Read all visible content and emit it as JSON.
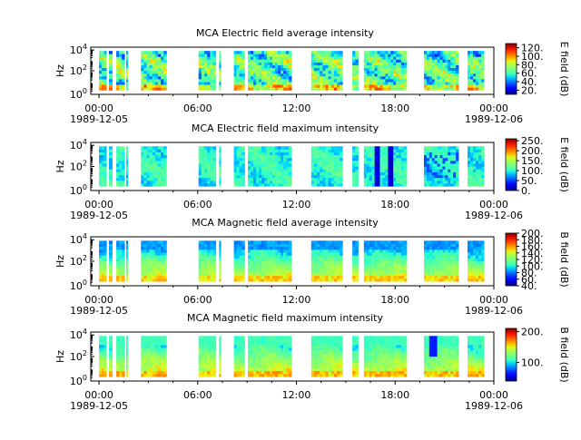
{
  "chart_data": [
    {
      "type": "heatmap",
      "title": "MCA  Electric field average intensity",
      "ylabel": "Hz",
      "y_scale": "log",
      "y_tick_labels": [
        "10^0",
        "10^2",
        "10^4"
      ],
      "x_tick_labels": [
        "00:00",
        "06:00",
        "12:00",
        "18:00",
        "00:00"
      ],
      "x_date_start": "1989-12-05",
      "x_date_end": "1989-12-06",
      "colorbar": {
        "label": "E field (dB)",
        "ticks": [
          "20.",
          "40.",
          "60.",
          "80.",
          "100.",
          "120."
        ],
        "range": [
          10,
          130
        ]
      },
      "level": "avg_e"
    },
    {
      "type": "heatmap",
      "title": "MCA  Electric field maximum intensity",
      "ylabel": "Hz",
      "y_scale": "log",
      "y_tick_labels": [
        "10^0",
        "10^2",
        "10^4"
      ],
      "x_tick_labels": [
        "00:00",
        "06:00",
        "12:00",
        "18:00",
        "00:00"
      ],
      "x_date_start": "1989-12-05",
      "x_date_end": "1989-12-06",
      "colorbar": {
        "label": "E field (dB)",
        "ticks": [
          "0.",
          "50.",
          "100.",
          "150.",
          "200.",
          "250."
        ],
        "range": [
          0,
          260
        ]
      },
      "level": "max_e"
    },
    {
      "type": "heatmap",
      "title": "MCA  Magnetic field average intensity",
      "ylabel": "Hz",
      "y_scale": "log",
      "y_tick_labels": [
        "10^0",
        "10^2",
        "10^4"
      ],
      "x_tick_labels": [
        "00:00",
        "06:00",
        "12:00",
        "18:00",
        "00:00"
      ],
      "x_date_start": "1989-12-05",
      "x_date_end": "1989-12-06",
      "colorbar": {
        "label": "B field (dB)",
        "ticks": [
          "40.",
          "60.",
          "80.",
          "100.",
          "120.",
          "140.",
          "160.",
          "180.",
          "200."
        ],
        "range": [
          40,
          200
        ]
      },
      "level": "avg_b"
    },
    {
      "type": "heatmap",
      "title": "MCA  Magnetic field maximum intensity",
      "ylabel": "Hz",
      "y_scale": "log",
      "y_tick_labels": [
        "10^0",
        "10^2",
        "10^4"
      ],
      "x_tick_labels": [
        "00:00",
        "06:00",
        "12:00",
        "18:00",
        "00:00"
      ],
      "x_date_start": "1989-12-05",
      "x_date_end": "1989-12-06",
      "colorbar": {
        "label": "B field (dB)",
        "ticks": [
          "100.",
          "200."
        ],
        "range": [
          40,
          210
        ]
      },
      "level": "max_b"
    }
  ],
  "data_intervals_hours": [
    [
      0.0,
      0.45
    ],
    [
      0.6,
      0.8
    ],
    [
      1.05,
      1.55
    ],
    [
      1.65,
      1.75
    ],
    [
      2.55,
      4.1
    ],
    [
      6.05,
      7.1
    ],
    [
      7.3,
      7.4
    ],
    [
      8.2,
      8.85
    ],
    [
      9.05,
      11.7
    ],
    [
      12.9,
      14.8
    ],
    [
      15.4,
      15.75
    ],
    [
      16.1,
      18.7
    ],
    [
      19.75,
      21.85
    ],
    [
      22.4,
      23.4
    ]
  ]
}
